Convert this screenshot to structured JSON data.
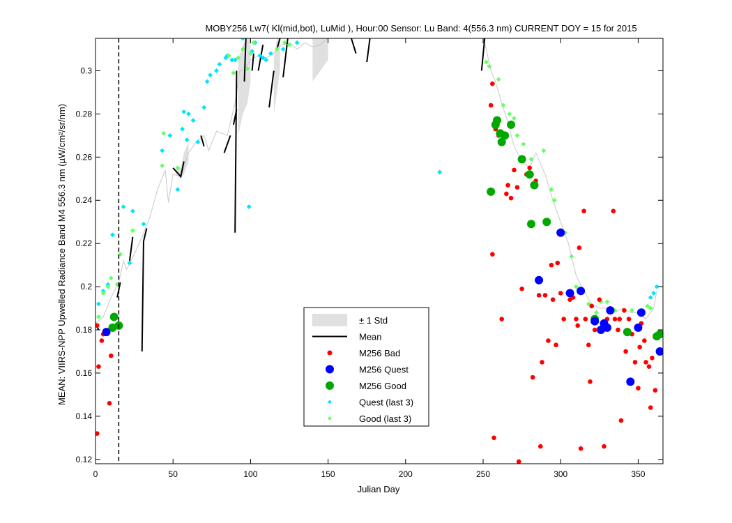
{
  "chart_data": {
    "type": "scatter",
    "title": "MOBY256   Lw7( Kl(mid,bot), LuMid ),   Hour:00 Sensor: Lu Band: 4(556.3 nm)   CURRENT DOY = 15 for 2015",
    "xlabel": "Julian Day",
    "ylabel": "MEAN: VIIRS-NPP Upwelled Radiance Band M4 556.3 nm (µW/cm²/sr/nm)",
    "xlim": [
      0,
      366
    ],
    "ylim": [
      0.118,
      0.315
    ],
    "x_ticks": [
      "0",
      "50",
      "100",
      "150",
      "200",
      "250",
      "300",
      "350"
    ],
    "x_tick_values": [
      0,
      50,
      100,
      150,
      200,
      250,
      300,
      350
    ],
    "y_ticks": [
      "0.12",
      "0.14",
      "0.16",
      "0.18",
      "0.2",
      "0.22",
      "0.24",
      "0.26",
      "0.28",
      "0.3"
    ],
    "y_tick_values": [
      0.12,
      0.14,
      0.16,
      0.18,
      0.2,
      0.22,
      0.24,
      0.26,
      0.28,
      0.3
    ],
    "current_doy": 15,
    "legend_position": "center-bottom",
    "legend": [
      "± 1 Std",
      "Mean",
      "M256 Bad",
      "M256 Quest",
      "M256 Good",
      "Quest (last 3)",
      "Good (last 3)"
    ],
    "colors": {
      "std_fill": "#e0e0e0",
      "mean": "#000000",
      "bad": "#ff0000",
      "quest": "#0000ff",
      "good": "#00a800",
      "quest_last3": "#00e5ff",
      "good_last3": "#66ff66",
      "thin_line": "#c8c8c8"
    },
    "std_band": [
      [
        52,
        0.252,
        0.256
      ],
      [
        55,
        0.25,
        0.255
      ],
      [
        57,
        0.252,
        0.262
      ],
      [
        60,
        0.258,
        0.267
      ],
      [
        92,
        0.27,
        0.305
      ],
      [
        95,
        0.28,
        0.312
      ],
      [
        98,
        0.285,
        0.315
      ],
      [
        100,
        0.295,
        0.315
      ],
      [
        115,
        0.28,
        0.305
      ],
      [
        117,
        0.29,
        0.315
      ],
      [
        119,
        0.3,
        0.315
      ],
      [
        140,
        0.295,
        0.315
      ],
      [
        145,
        0.3,
        0.315
      ],
      [
        150,
        0.305,
        0.315
      ]
    ],
    "mean_segments": [
      [
        [
          0,
          0.183
        ],
        [
          2,
          0.18
        ]
      ],
      [
        [
          14,
          0.195
        ],
        [
          16,
          0.202
        ]
      ],
      [
        [
          22,
          0.212
        ],
        [
          24,
          0.223
        ]
      ],
      [
        [
          30,
          0.17
        ],
        [
          31,
          0.221
        ],
        [
          33,
          0.227
        ]
      ],
      [
        [
          50,
          0.255
        ],
        [
          55,
          0.251
        ],
        [
          57,
          0.258
        ]
      ],
      [
        [
          68,
          0.27
        ],
        [
          70,
          0.265
        ]
      ],
      [
        [
          83,
          0.262
        ],
        [
          87,
          0.27
        ]
      ],
      [
        [
          89,
          0.275
        ],
        [
          91,
          0.282
        ]
      ],
      [
        [
          90,
          0.225
        ],
        [
          91,
          0.3
        ]
      ],
      [
        [
          96,
          0.295
        ],
        [
          97,
          0.315
        ]
      ],
      [
        [
          101,
          0.3
        ],
        [
          102,
          0.308
        ]
      ],
      [
        [
          105,
          0.3
        ],
        [
          108,
          0.312
        ]
      ],
      [
        [
          112,
          0.283
        ],
        [
          115,
          0.3
        ]
      ],
      [
        [
          117,
          0.31
        ],
        [
          119,
          0.315
        ]
      ],
      [
        [
          121,
          0.297
        ],
        [
          124,
          0.315
        ]
      ],
      [
        [
          165,
          0.315
        ],
        [
          168,
          0.308
        ]
      ],
      [
        [
          175,
          0.304
        ],
        [
          177,
          0.315
        ]
      ],
      [
        [
          249,
          0.3
        ],
        [
          251,
          0.315
        ]
      ]
    ],
    "thin_line": [
      [
        0,
        0.183
      ],
      [
        5,
        0.186
      ],
      [
        10,
        0.195
      ],
      [
        15,
        0.202
      ],
      [
        18,
        0.212
      ],
      [
        20,
        0.208
      ],
      [
        25,
        0.215
      ],
      [
        30,
        0.223
      ],
      [
        35,
        0.232
      ],
      [
        40,
        0.245
      ],
      [
        45,
        0.254
      ],
      [
        47,
        0.239
      ],
      [
        50,
        0.252
      ],
      [
        55,
        0.251
      ],
      [
        60,
        0.262
      ],
      [
        65,
        0.267
      ],
      [
        70,
        0.27
      ],
      [
        73,
        0.263
      ],
      [
        78,
        0.272
      ],
      [
        85,
        0.27
      ],
      [
        90,
        0.285
      ],
      [
        93,
        0.3
      ],
      [
        95,
        0.3
      ],
      [
        100,
        0.305
      ],
      [
        105,
        0.307
      ],
      [
        110,
        0.306
      ],
      [
        115,
        0.308
      ],
      [
        120,
        0.312
      ],
      [
        125,
        0.313
      ],
      [
        130,
        0.31
      ],
      [
        135,
        0.313
      ],
      [
        140,
        0.311
      ],
      [
        145,
        0.312
      ],
      [
        150,
        0.315
      ],
      [
        250,
        0.315
      ],
      [
        252,
        0.31
      ],
      [
        255,
        0.3
      ],
      [
        258,
        0.295
      ],
      [
        262,
        0.285
      ],
      [
        266,
        0.276
      ],
      [
        270,
        0.265
      ],
      [
        275,
        0.258
      ],
      [
        280,
        0.255
      ],
      [
        284,
        0.262
      ],
      [
        290,
        0.252
      ],
      [
        295,
        0.24
      ],
      [
        300,
        0.23
      ],
      [
        305,
        0.22
      ],
      [
        310,
        0.205
      ],
      [
        315,
        0.198
      ],
      [
        320,
        0.192
      ],
      [
        325,
        0.19
      ],
      [
        330,
        0.19
      ],
      [
        335,
        0.188
      ],
      [
        340,
        0.19
      ],
      [
        345,
        0.188
      ],
      [
        350,
        0.188
      ],
      [
        355,
        0.185
      ],
      [
        360,
        0.19
      ],
      [
        362,
        0.198
      ]
    ],
    "bad": [
      [
        1,
        0.182
      ],
      [
        1,
        0.132
      ],
      [
        2,
        0.163
      ],
      [
        4,
        0.175
      ],
      [
        5,
        0.178
      ],
      [
        9,
        0.146
      ],
      [
        10,
        0.168
      ],
      [
        255,
        0.284
      ],
      [
        256,
        0.215
      ],
      [
        257,
        0.13
      ],
      [
        256,
        0.294
      ],
      [
        258,
        0.273
      ],
      [
        260,
        0.27
      ],
      [
        262,
        0.185
      ],
      [
        265,
        0.243
      ],
      [
        266,
        0.247
      ],
      [
        268,
        0.241
      ],
      [
        270,
        0.254
      ],
      [
        272,
        0.246
      ],
      [
        273,
        0.119
      ],
      [
        275,
        0.199
      ],
      [
        278,
        0.252
      ],
      [
        280,
        0.255
      ],
      [
        282,
        0.158
      ],
      [
        284,
        0.249
      ],
      [
        286,
        0.196
      ],
      [
        287,
        0.126
      ],
      [
        288,
        0.165
      ],
      [
        290,
        0.196
      ],
      [
        292,
        0.175
      ],
      [
        294,
        0.21
      ],
      [
        295,
        0.194
      ],
      [
        297,
        0.173
      ],
      [
        298,
        0.211
      ],
      [
        300,
        0.197
      ],
      [
        302,
        0.185
      ],
      [
        306,
        0.194
      ],
      [
        308,
        0.195
      ],
      [
        310,
        0.185
      ],
      [
        311,
        0.182
      ],
      [
        312,
        0.218
      ],
      [
        313,
        0.125
      ],
      [
        315,
        0.235
      ],
      [
        316,
        0.185
      ],
      [
        318,
        0.173
      ],
      [
        319,
        0.156
      ],
      [
        320,
        0.191
      ],
      [
        322,
        0.18
      ],
      [
        323,
        0.185
      ],
      [
        325,
        0.194
      ],
      [
        327,
        0.18
      ],
      [
        328,
        0.126
      ],
      [
        330,
        0.185
      ],
      [
        332,
        0.189
      ],
      [
        334,
        0.235
      ],
      [
        335,
        0.185
      ],
      [
        337,
        0.18
      ],
      [
        338,
        0.185
      ],
      [
        339,
        0.138
      ],
      [
        341,
        0.189
      ],
      [
        342,
        0.17
      ],
      [
        344,
        0.185
      ],
      [
        346,
        0.178
      ],
      [
        348,
        0.165
      ],
      [
        350,
        0.153
      ],
      [
        351,
        0.172
      ],
      [
        352,
        0.183
      ],
      [
        354,
        0.175
      ],
      [
        355,
        0.165
      ],
      [
        357,
        0.163
      ],
      [
        358,
        0.144
      ],
      [
        359,
        0.167
      ],
      [
        361,
        0.152
      ]
    ],
    "quest": [
      [
        7,
        0.179
      ],
      [
        286,
        0.203
      ],
      [
        300,
        0.225
      ],
      [
        306,
        0.197
      ],
      [
        313,
        0.198
      ],
      [
        322,
        0.184
      ],
      [
        326,
        0.18
      ],
      [
        328,
        0.183
      ],
      [
        330,
        0.181
      ],
      [
        332,
        0.189
      ],
      [
        345,
        0.156
      ],
      [
        350,
        0.181
      ],
      [
        352,
        0.188
      ],
      [
        364,
        0.17
      ]
    ],
    "good": [
      [
        11,
        0.181
      ],
      [
        12,
        0.186
      ],
      [
        15,
        0.182
      ],
      [
        255,
        0.244
      ],
      [
        258,
        0.275
      ],
      [
        259,
        0.277
      ],
      [
        261,
        0.271
      ],
      [
        262,
        0.267
      ],
      [
        264,
        0.27
      ],
      [
        268,
        0.275
      ],
      [
        275,
        0.259
      ],
      [
        280,
        0.252
      ],
      [
        281,
        0.229
      ],
      [
        283,
        0.247
      ],
      [
        291,
        0.23
      ],
      [
        300,
        0.225
      ],
      [
        322,
        0.185
      ],
      [
        343,
        0.179
      ],
      [
        362,
        0.177
      ],
      [
        364,
        0.178
      ]
    ],
    "quest_last3": [
      [
        2,
        0.192
      ],
      [
        5,
        0.198
      ],
      [
        8,
        0.201
      ],
      [
        11,
        0.224
      ],
      [
        18,
        0.237
      ],
      [
        22,
        0.211
      ],
      [
        24,
        0.235
      ],
      [
        31,
        0.229
      ],
      [
        43,
        0.263
      ],
      [
        48,
        0.27
      ],
      [
        53,
        0.245
      ],
      [
        56,
        0.273
      ],
      [
        57,
        0.281
      ],
      [
        59,
        0.268
      ],
      [
        60,
        0.28
      ],
      [
        63,
        0.277
      ],
      [
        66,
        0.267
      ],
      [
        70,
        0.283
      ],
      [
        72,
        0.295
      ],
      [
        74,
        0.298
      ],
      [
        78,
        0.3
      ],
      [
        80,
        0.303
      ],
      [
        84,
        0.306
      ],
      [
        85,
        0.307
      ],
      [
        88,
        0.305
      ],
      [
        90,
        0.305
      ],
      [
        95,
        0.315
      ],
      [
        99,
        0.237
      ],
      [
        101,
        0.309
      ],
      [
        103,
        0.313
      ],
      [
        106,
        0.307
      ],
      [
        108,
        0.306
      ],
      [
        110,
        0.305
      ],
      [
        113,
        0.308
      ],
      [
        117,
        0.31
      ],
      [
        121,
        0.31
      ],
      [
        125,
        0.312
      ],
      [
        130,
        0.313
      ],
      [
        222,
        0.253
      ],
      [
        358,
        0.195
      ],
      [
        360,
        0.197
      ],
      [
        362,
        0.2
      ]
    ],
    "good_last3": [
      [
        2,
        0.186
      ],
      [
        5,
        0.197
      ],
      [
        8,
        0.2
      ],
      [
        10,
        0.204
      ],
      [
        14,
        0.201
      ],
      [
        16,
        0.215
      ],
      [
        24,
        0.226
      ],
      [
        43,
        0.256
      ],
      [
        44,
        0.271
      ],
      [
        53,
        0.255
      ],
      [
        86,
        0.307
      ],
      [
        89,
        0.299
      ],
      [
        92,
        0.306
      ],
      [
        95,
        0.31
      ],
      [
        98,
        0.301
      ],
      [
        100,
        0.308
      ],
      [
        102,
        0.313
      ],
      [
        117,
        0.31
      ],
      [
        122,
        0.313
      ],
      [
        125,
        0.312
      ],
      [
        252,
        0.304
      ],
      [
        254,
        0.302
      ],
      [
        260,
        0.296
      ],
      [
        263,
        0.284
      ],
      [
        267,
        0.28
      ],
      [
        270,
        0.278
      ],
      [
        272,
        0.27
      ],
      [
        276,
        0.266
      ],
      [
        281,
        0.259
      ],
      [
        289,
        0.263
      ],
      [
        294,
        0.245
      ],
      [
        296,
        0.24
      ],
      [
        303,
        0.225
      ],
      [
        307,
        0.214
      ],
      [
        310,
        0.2
      ],
      [
        318,
        0.192
      ],
      [
        323,
        0.188
      ],
      [
        326,
        0.193
      ],
      [
        330,
        0.193
      ],
      [
        335,
        0.189
      ],
      [
        338,
        0.185
      ],
      [
        346,
        0.189
      ],
      [
        353,
        0.189
      ],
      [
        356,
        0.191
      ],
      [
        358,
        0.19
      ]
    ]
  }
}
